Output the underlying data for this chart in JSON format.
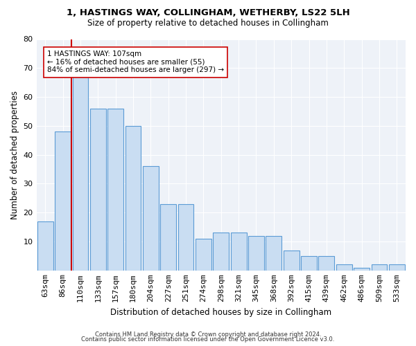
{
  "title": "1, HASTINGS WAY, COLLINGHAM, WETHERBY, LS22 5LH",
  "subtitle": "Size of property relative to detached houses in Collingham",
  "xlabel": "Distribution of detached houses by size in Collingham",
  "ylabel": "Number of detached properties",
  "categories": [
    "63sqm",
    "86sqm",
    "110sqm",
    "133sqm",
    "157sqm",
    "180sqm",
    "204sqm",
    "227sqm",
    "251sqm",
    "274sqm",
    "298sqm",
    "321sqm",
    "345sqm",
    "368sqm",
    "392sqm",
    "415sqm",
    "439sqm",
    "462sqm",
    "486sqm",
    "509sqm",
    "533sqm"
  ],
  "values": [
    17,
    48,
    67,
    56,
    56,
    50,
    36,
    23,
    23,
    11,
    13,
    13,
    12,
    12,
    7,
    5,
    5,
    2,
    1,
    2,
    2
  ],
  "bar_color": "#c9ddf2",
  "bar_edge_color": "#5b9bd5",
  "annotation_line1": "1 HASTINGS WAY: 107sqm",
  "annotation_line2": "← 16% of detached houses are smaller (55)",
  "annotation_line3": "84% of semi-detached houses are larger (297) →",
  "vline_color": "#cc0000",
  "annotation_box_color": "#ffffff",
  "annotation_box_edge": "#cc0000",
  "ylim": [
    0,
    80
  ],
  "yticks": [
    0,
    10,
    20,
    30,
    40,
    50,
    60,
    70,
    80
  ],
  "footer1": "Contains HM Land Registry data © Crown copyright and database right 2024.",
  "footer2": "Contains public sector information licensed under the Open Government Licence v3.0.",
  "bg_color": "#ffffff",
  "plot_bg_color": "#eef2f8",
  "grid_color": "#ffffff",
  "title_fontsize": 9.5,
  "subtitle_fontsize": 8.5,
  "ylabel_fontsize": 8.5,
  "xlabel_fontsize": 8.5,
  "tick_fontsize": 8.0,
  "footer_fontsize": 6.0,
  "annot_fontsize": 7.5
}
